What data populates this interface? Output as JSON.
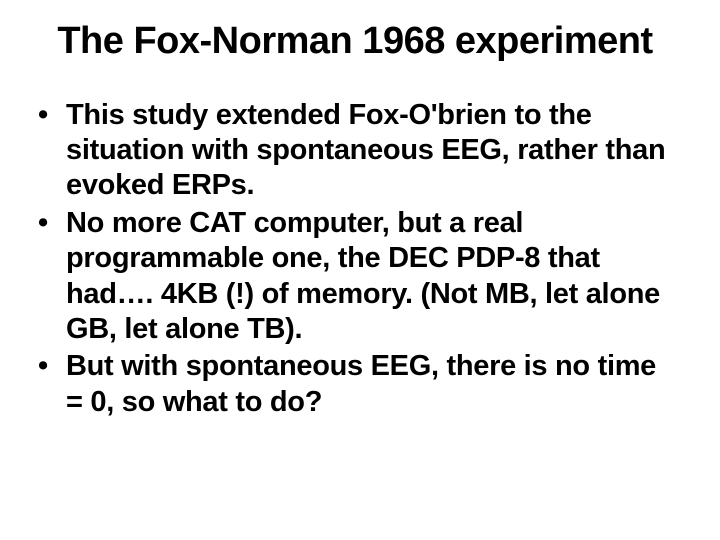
{
  "slide": {
    "title": "The Fox-Norman 1968 experiment",
    "bullets": [
      "This study extended Fox-O'brien to the situation with spontaneous EEG, rather than evoked ERPs.",
      "No more CAT computer, but a real programmable one, the DEC PDP-8 that had…. 4KB (!) of memory. (Not MB, let alone GB, let alone TB).",
      "But with spontaneous EEG, there is no time = 0, so what to do?"
    ]
  },
  "style": {
    "background_color": "#ffffff",
    "text_color": "#000000",
    "title_fontsize": 38,
    "title_fontweight": 900,
    "body_fontsize": 29,
    "body_fontweight": 900,
    "font_family": "Arial"
  }
}
